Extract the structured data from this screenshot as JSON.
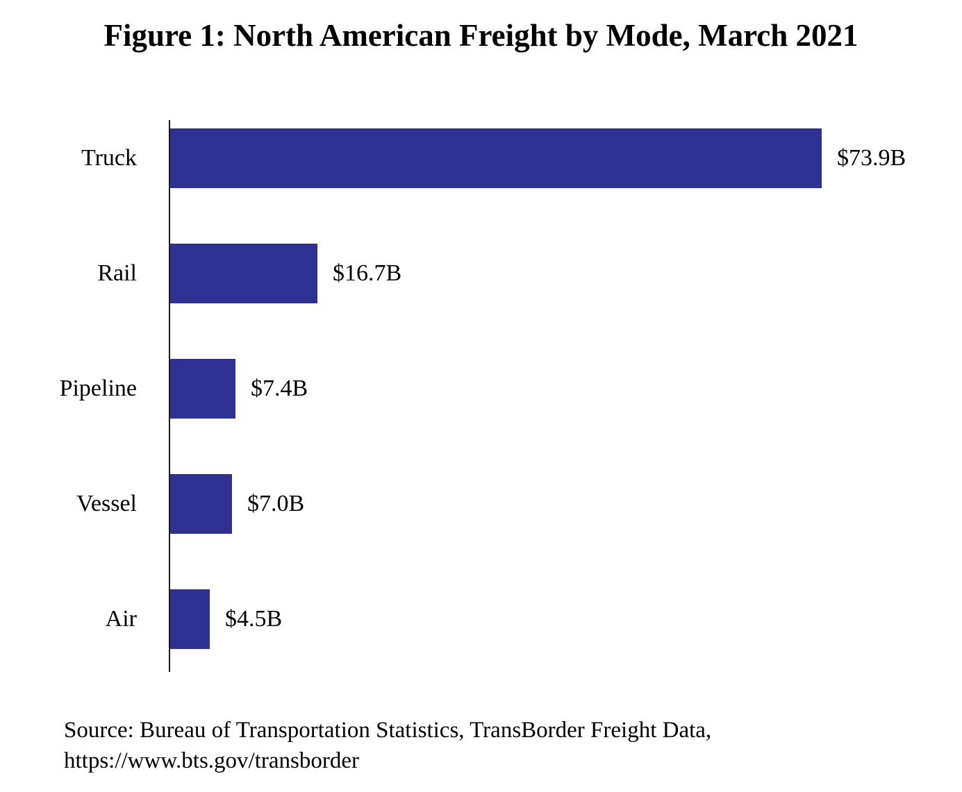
{
  "title": "Figure 1: North American Freight by Mode, March 2021",
  "source": {
    "line1": "Source: Bureau of Transportation Statistics, TransBorder Freight Data,",
    "line2": "https://www.bts.gov/transborder"
  },
  "colors": {
    "bar": "#2E3192",
    "axis": "#1a1a1a",
    "background": "#ffffff",
    "text": "#000000"
  },
  "chart_data": {
    "type": "bar",
    "orientation": "horizontal",
    "title": "Figure 1: North American Freight by Mode, March 2021",
    "categories": [
      "Truck",
      "Rail",
      "Pipeline",
      "Vessel",
      "Air"
    ],
    "values": [
      73.9,
      16.7,
      7.4,
      7.0,
      4.5
    ],
    "value_labels": [
      "$73.9B",
      "$16.7B",
      "$7.4B",
      "$7.0B",
      "$4.5B"
    ],
    "xlabel": "",
    "ylabel": "",
    "grid": false,
    "legend": false,
    "value_label_position": "right-of-bar"
  }
}
